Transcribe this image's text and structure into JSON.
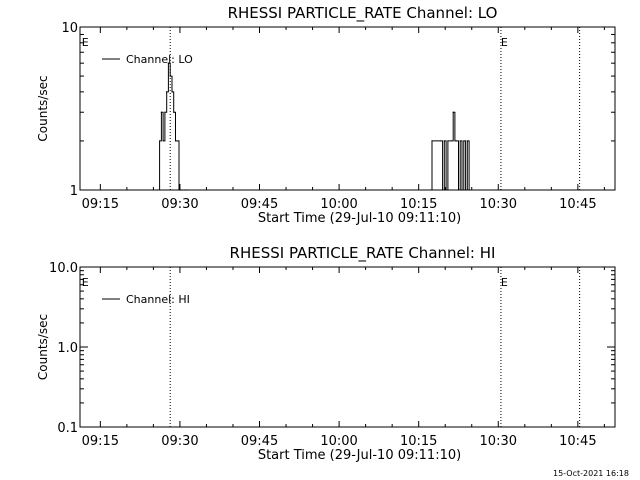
{
  "footer": {
    "timestamp": "15-Oct-2021 16:18"
  },
  "chart_data": [
    {
      "type": "line",
      "title": "RHESSI PARTICLE_RATE Channel: LO",
      "xlabel": "Start Time (29-Jul-10 09:11:10)",
      "ylabel": "Counts/sec",
      "yscale": "log",
      "ylim": [
        1,
        10
      ],
      "yticks": [
        1,
        10
      ],
      "ytick_labels": [
        "1",
        "10"
      ],
      "xlim": [
        "09:11:10",
        "10:52:00"
      ],
      "xticks": [
        "09:15",
        "09:30",
        "09:45",
        "10:00",
        "10:15",
        "10:30",
        "10:45"
      ],
      "legend": {
        "label": "Channel: LO",
        "position": "top-left"
      },
      "event_markers": [
        {
          "time": "09:11:30",
          "label": "E"
        },
        {
          "time": "10:30:30",
          "label": "E"
        }
      ],
      "vertical_dotted_lines": [
        "09:28:10",
        "10:30:30",
        "10:45:20"
      ],
      "series": [
        {
          "name": "Channel: LO",
          "x": [
            "09:25:50",
            "09:26:10",
            "09:26:30",
            "09:26:50",
            "09:27:10",
            "09:27:30",
            "09:27:50",
            "09:28:10",
            "09:28:30",
            "09:28:50",
            "09:29:10",
            "09:29:30",
            "09:29:50",
            "09:30:10",
            "09:30:30",
            "09:30:50",
            "09:31:10",
            "09:31:30",
            "10:17:10",
            "10:17:30",
            "10:19:10",
            "10:19:30",
            "10:19:50",
            "10:20:10",
            "10:20:30",
            "10:21:10",
            "10:21:30",
            "10:21:50",
            "10:22:10",
            "10:22:30",
            "10:22:50",
            "10:23:10",
            "10:23:30",
            "10:23:50",
            "10:24:10",
            "10:24:30"
          ],
          "values": [
            1,
            2,
            3,
            2,
            3,
            4,
            6,
            5,
            4,
            3,
            2,
            2,
            1,
            1,
            1,
            1,
            1,
            1,
            1,
            2,
            2,
            1,
            2,
            1,
            2,
            2,
            3,
            2,
            2,
            1,
            2,
            1,
            2,
            1,
            2,
            1
          ]
        }
      ]
    },
    {
      "type": "line",
      "title": "RHESSI PARTICLE_RATE Channel: HI",
      "xlabel": "Start Time (29-Jul-10 09:11:10)",
      "ylabel": "Counts/sec",
      "yscale": "log",
      "ylim": [
        0.1,
        10
      ],
      "yticks": [
        0.1,
        1,
        10
      ],
      "ytick_labels": [
        "0.1",
        "1.0",
        "10.0"
      ],
      "xlim": [
        "09:11:10",
        "10:52:00"
      ],
      "xticks": [
        "09:15",
        "09:30",
        "09:45",
        "10:00",
        "10:15",
        "10:30",
        "10:45"
      ],
      "legend": {
        "label": "Channel: HI",
        "position": "top-left"
      },
      "event_markers": [
        {
          "time": "09:11:30",
          "label": "E"
        },
        {
          "time": "10:30:30",
          "label": "E"
        }
      ],
      "vertical_dotted_lines": [
        "09:28:10",
        "10:30:30",
        "10:45:20"
      ],
      "series": [
        {
          "name": "Channel: HI",
          "x": [],
          "values": []
        }
      ]
    }
  ]
}
